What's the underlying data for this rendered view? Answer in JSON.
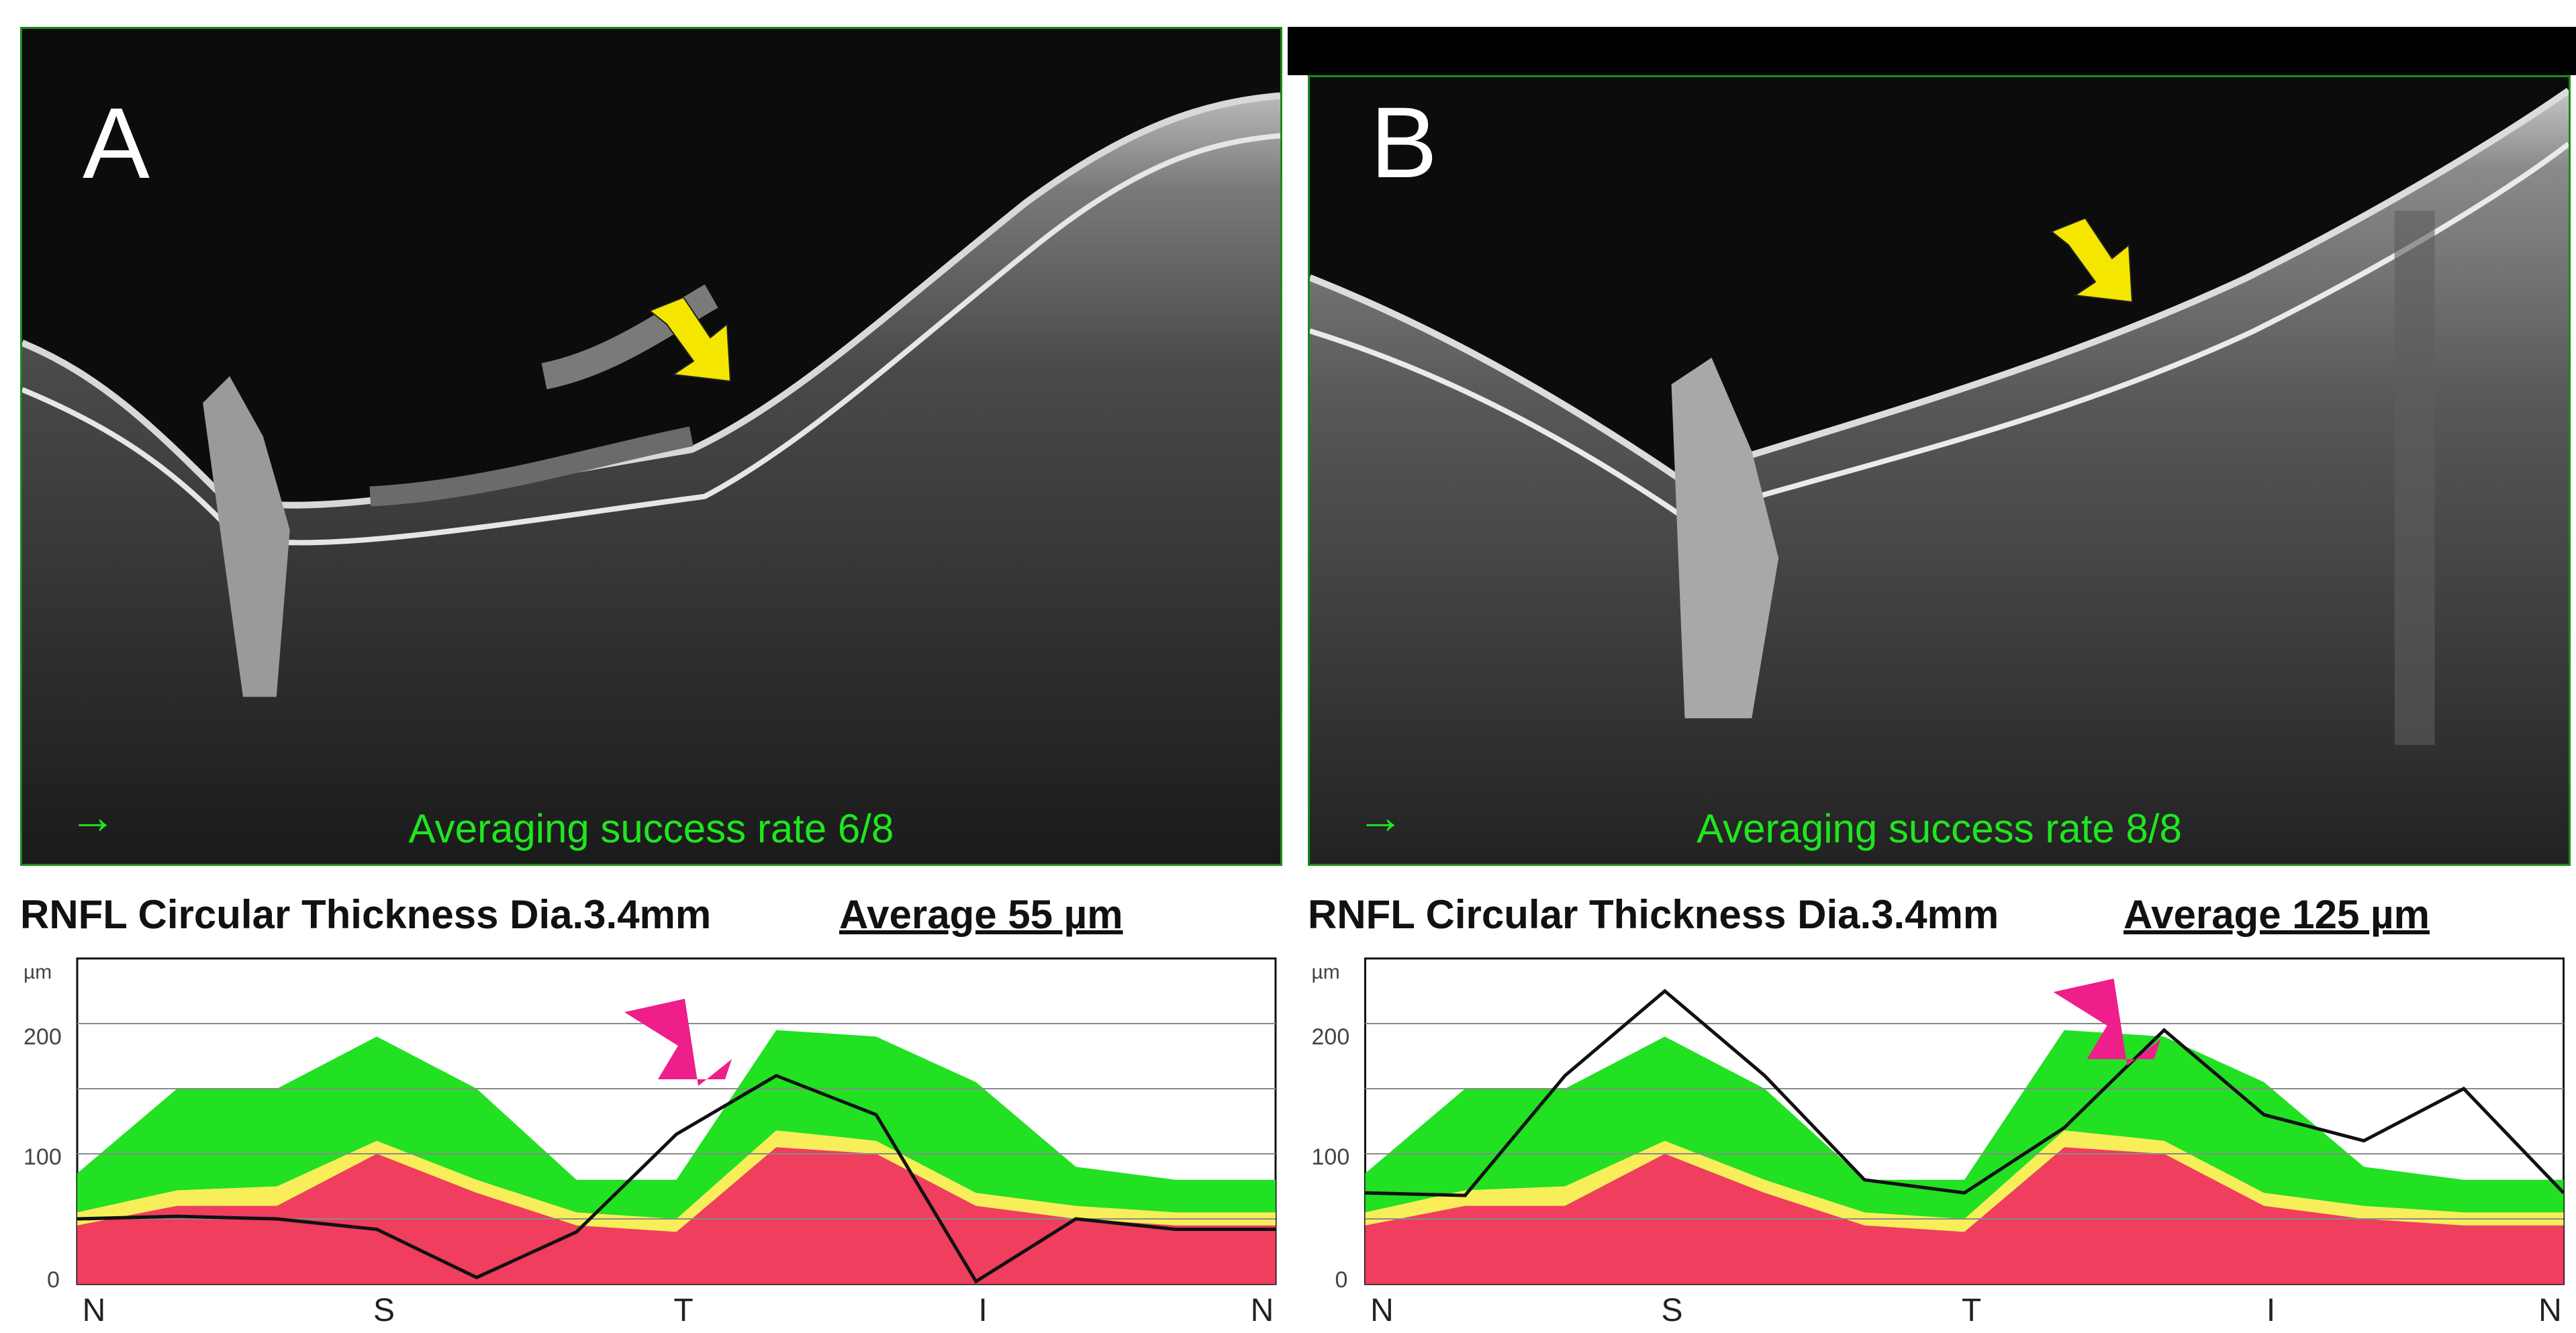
{
  "panels": [
    {
      "letter": "A",
      "averaging_rate": "Averaging success rate 6/8",
      "title": "RNFL Circular Thickness Dia.3.4mm",
      "average": "Average  55 µm",
      "unit": "µm",
      "y_ticks": [
        "200",
        "100",
        "0"
      ],
      "x_labels": [
        "N",
        "S",
        "T",
        "I",
        "N"
      ]
    },
    {
      "letter": "B",
      "averaging_rate": "Averaging success rate 8/8",
      "title": "RNFL Circular Thickness Dia.3.4mm",
      "average": "Average  125 µm",
      "unit": "µm",
      "y_ticks": [
        "200",
        "100",
        "0"
      ],
      "x_labels": [
        "N",
        "S",
        "T",
        "I",
        "N"
      ]
    }
  ],
  "colors": {
    "normal": "#22e022",
    "borderline": "#f7ee5a",
    "abnormal": "#ef3e5e",
    "arrow_yellow": "#f5e600",
    "arrow_magenta": "#ee1f8a",
    "overlay_text": "#1fe61f"
  },
  "chart_data": [
    {
      "type": "area",
      "title": "RNFL Circular Thickness Dia.3.4mm",
      "ylabel": "µm",
      "ylim": [
        0,
        250
      ],
      "y_ticks": [
        0,
        100,
        200
      ],
      "categories": [
        "N",
        "S",
        "T",
        "I",
        "N"
      ],
      "x": [
        0,
        30,
        60,
        90,
        120,
        150,
        180,
        210,
        240,
        270,
        300,
        330,
        360
      ],
      "series": [
        {
          "name": "normal_upper",
          "values": [
            85,
            150,
            150,
            190,
            150,
            80,
            80,
            195,
            190,
            155,
            90,
            80,
            80
          ]
        },
        {
          "name": "borderline_upper",
          "values": [
            55,
            72,
            75,
            110,
            80,
            55,
            50,
            118,
            110,
            70,
            60,
            55,
            55
          ]
        },
        {
          "name": "abnormal_upper",
          "values": [
            45,
            60,
            60,
            100,
            70,
            45,
            40,
            105,
            100,
            60,
            50,
            45,
            45
          ]
        },
        {
          "name": "measured",
          "values": [
            50,
            52,
            50,
            42,
            5,
            40,
            115,
            160,
            130,
            2,
            50,
            42,
            42
          ]
        }
      ]
    },
    {
      "type": "area",
      "title": "RNFL Circular Thickness Dia.3.4mm",
      "ylabel": "µm",
      "ylim": [
        0,
        250
      ],
      "y_ticks": [
        0,
        100,
        200
      ],
      "categories": [
        "N",
        "S",
        "T",
        "I",
        "N"
      ],
      "x": [
        0,
        30,
        60,
        90,
        120,
        150,
        180,
        210,
        240,
        270,
        300,
        330,
        360
      ],
      "series": [
        {
          "name": "normal_upper",
          "values": [
            85,
            150,
            150,
            190,
            150,
            80,
            80,
            195,
            190,
            155,
            90,
            80,
            80
          ]
        },
        {
          "name": "borderline_upper",
          "values": [
            55,
            72,
            75,
            110,
            80,
            55,
            50,
            118,
            110,
            70,
            60,
            55,
            55
          ]
        },
        {
          "name": "abnormal_upper",
          "values": [
            45,
            60,
            60,
            100,
            70,
            45,
            40,
            105,
            100,
            60,
            50,
            45,
            45
          ]
        },
        {
          "name": "measured",
          "values": [
            70,
            68,
            160,
            225,
            160,
            80,
            70,
            120,
            195,
            130,
            110,
            150,
            70
          ]
        }
      ]
    }
  ]
}
